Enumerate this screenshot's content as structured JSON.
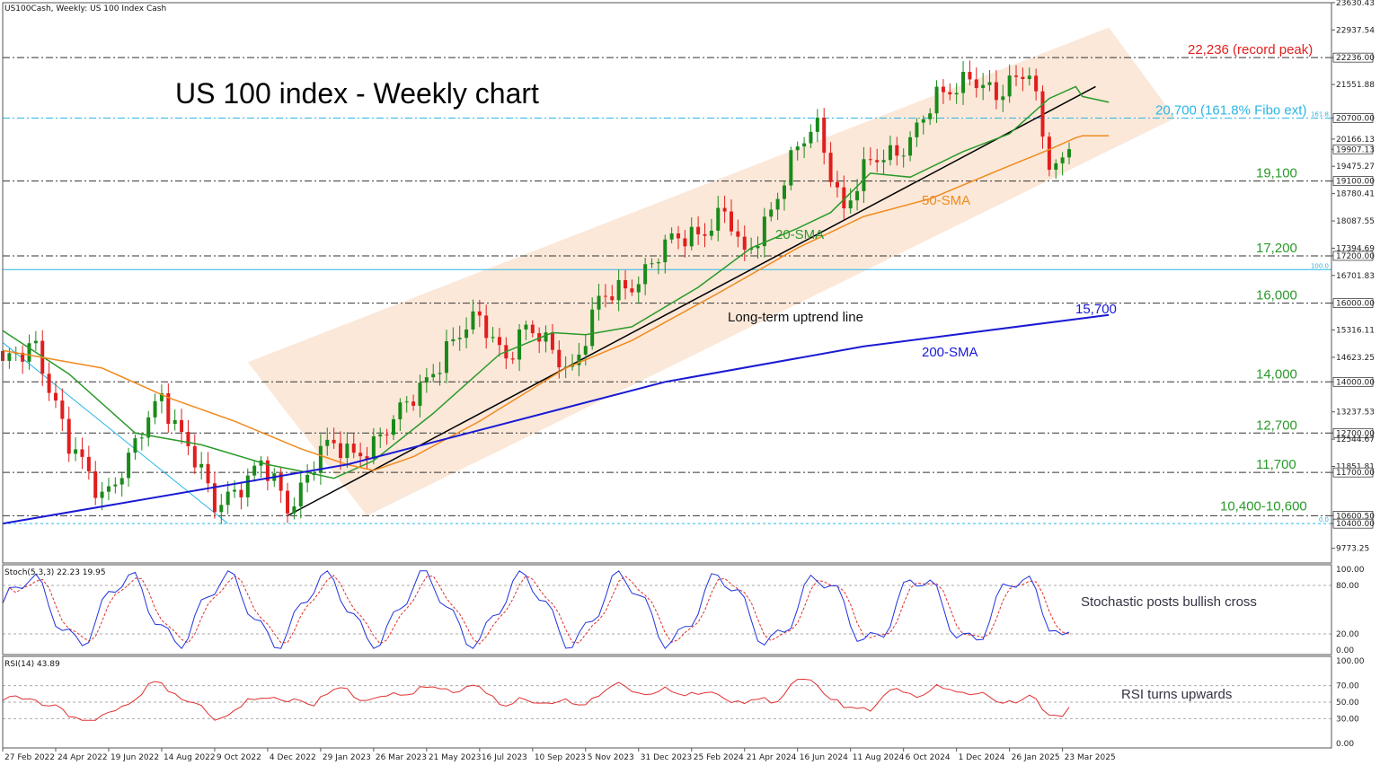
{
  "header": {
    "symbol_text": "US100Cash, Weekly:  US 100 Index Cash"
  },
  "title": "US 100 index - Weekly chart",
  "colors": {
    "candle_up": "#1a8a1a",
    "candle_down": "#e01e1e",
    "sma20": "#2a9a2a",
    "sma50": "#f08a1e",
    "sma200": "#1a1ad4",
    "channel": "#fae4d2",
    "level_line": "#333333",
    "fibo": "#29b6e6",
    "stoch_k": "#2233dd",
    "stoch_d": "#e03030",
    "rsi": "#e03030"
  },
  "price_axis_labels": [
    "23630.43",
    "22937.54",
    "22236.00",
    "21551.88",
    "20700.00",
    "20166.13",
    "19907.13",
    "19475.27",
    "19100.00",
    "18780.41",
    "18087.55",
    "17394.69",
    "17200.00",
    "16701.83",
    "16000.00",
    "15316.11",
    "14623.25",
    "14000.00",
    "13237.53",
    "12700.00",
    "12544.67",
    "11851.81",
    "11700.00",
    "10600.50",
    "10400.00",
    "9773.25"
  ],
  "time_axis_labels": [
    "27 Feb 2022",
    "24 Apr 2022",
    "19 Jun 2022",
    "14 Aug 2022",
    "9 Oct 2022",
    "4 Dec 2022",
    "29 Jan 2023",
    "26 Mar 2023",
    "21 May 2023",
    "16 Jul 2023",
    "10 Sep 2023",
    "5 Nov 2023",
    "31 Dec 2023",
    "25 Feb 2024",
    "21 Apr 2024",
    "16 Jun 2024",
    "11 Aug 2024",
    "6 Oct 2024",
    "1 Dec 2024",
    "26 Jan 2025",
    "23 Mar 2025"
  ],
  "levels": [
    {
      "value": 22236,
      "label": "22,236 (record peak)",
      "color": "#e01e1e"
    },
    {
      "value": 20700,
      "label": "20,700 (161.8% Fibo ext)",
      "color": "#29b6e6"
    },
    {
      "value": 19100,
      "label": "19,100",
      "color": "#2a9a2a"
    },
    {
      "value": 17200,
      "label": "17,200",
      "color": "#2a9a2a"
    },
    {
      "value": 16000,
      "label": "16,000",
      "color": "#2a9a2a"
    },
    {
      "value": 14000,
      "label": "14,000",
      "color": "#2a9a2a"
    },
    {
      "value": 12700,
      "label": "12,700",
      "color": "#2a9a2a"
    },
    {
      "value": 11700,
      "label": "11,700",
      "color": "#2a9a2a"
    },
    {
      "value": 10600,
      "label": "10,400-10,600",
      "color": "#2a9a2a"
    }
  ],
  "fibo_labels": {
    "f1618": "161.8",
    "f100": "100.0",
    "f0": "0.0"
  },
  "annotations": {
    "sma20": "20-SMA",
    "sma50": "50-SMA",
    "sma200": "200-SMA",
    "sma200_value": "15,700",
    "uptrend": "Long-term uptrend line",
    "stoch_note": "Stochastic posts bullish cross",
    "rsi_note": "RSI turns upwards"
  },
  "stoch_panel": {
    "header": "Stoch(5,3,3) 22.23 19.95",
    "axis_labels": [
      "100.00",
      "80.00",
      "20.00",
      "0.00"
    ]
  },
  "rsi_panel": {
    "header": "RSI(14) 43.89",
    "axis_labels": [
      "100.00",
      "70.00",
      "50.00",
      "30.00",
      "0.00"
    ]
  },
  "chart_data": {
    "type": "candlestick",
    "title": "US 100 index - Weekly chart",
    "ylim": [
      9400,
      23630
    ],
    "x_range": [
      "2022-02-27",
      "2025-03-30"
    ],
    "anchors": [
      [
        "2022-02-27",
        14300
      ],
      [
        "2022-04-03",
        15050
      ],
      [
        "2022-05-08",
        12300
      ],
      [
        "2022-06-12",
        11200
      ],
      [
        "2022-07-10",
        11950
      ],
      [
        "2022-08-14",
        13700
      ],
      [
        "2022-09-11",
        12400
      ],
      [
        "2022-10-09",
        10750
      ],
      [
        "2022-11-06",
        11500
      ],
      [
        "2022-11-27",
        11900
      ],
      [
        "2022-12-25",
        10750
      ],
      [
        "2023-01-29",
        12350
      ],
      [
        "2023-03-05",
        12100
      ],
      [
        "2023-04-30",
        13300
      ],
      [
        "2023-06-11",
        14900
      ],
      [
        "2023-07-16",
        15550
      ],
      [
        "2023-08-13",
        14750
      ],
      [
        "2023-09-03",
        15300
      ],
      [
        "2023-10-22",
        14400
      ],
      [
        "2023-11-19",
        15950
      ],
      [
        "2023-12-31",
        16700
      ],
      [
        "2024-02-04",
        17500
      ],
      [
        "2024-03-31",
        18250
      ],
      [
        "2024-04-21",
        17100
      ],
      [
        "2024-06-16",
        19850
      ],
      [
        "2024-07-07",
        20500
      ],
      [
        "2024-08-04",
        18400
      ],
      [
        "2024-09-01",
        19500
      ],
      [
        "2024-10-13",
        20200
      ],
      [
        "2024-11-10",
        21100
      ],
      [
        "2024-12-15",
        21900
      ],
      [
        "2025-01-12",
        21100
      ],
      [
        "2025-02-16",
        22100
      ],
      [
        "2025-03-09",
        19500
      ],
      [
        "2025-03-23",
        19900
      ]
    ],
    "series": [
      {
        "name": "20-SMA",
        "values": [
          [
            0,
            15300
          ],
          [
            10,
            14200
          ],
          [
            20,
            12700
          ],
          [
            30,
            12400
          ],
          [
            40,
            11900
          ],
          [
            46,
            11700
          ],
          [
            50,
            11550
          ],
          [
            56,
            12000
          ],
          [
            65,
            13200
          ],
          [
            75,
            14700
          ],
          [
            83,
            15250
          ],
          [
            88,
            15200
          ],
          [
            95,
            15400
          ],
          [
            105,
            16400
          ],
          [
            113,
            17400
          ],
          [
            120,
            17900
          ],
          [
            125,
            18300
          ],
          [
            131,
            19300
          ],
          [
            137,
            19200
          ],
          [
            145,
            19850
          ],
          [
            152,
            20300
          ],
          [
            158,
            21200
          ],
          [
            162,
            21500
          ],
          [
            163,
            21250
          ],
          [
            167,
            21100
          ]
        ]
      },
      {
        "name": "50-SMA",
        "values": [
          [
            0,
            14800
          ],
          [
            15,
            14350
          ],
          [
            25,
            13600
          ],
          [
            35,
            13000
          ],
          [
            45,
            12300
          ],
          [
            52,
            11900
          ],
          [
            56,
            11750
          ],
          [
            62,
            12100
          ],
          [
            72,
            13000
          ],
          [
            85,
            14350
          ],
          [
            95,
            15050
          ],
          [
            108,
            16250
          ],
          [
            120,
            17400
          ],
          [
            130,
            18200
          ],
          [
            140,
            18650
          ],
          [
            150,
            19350
          ],
          [
            158,
            19900
          ],
          [
            162,
            20200
          ],
          [
            163,
            20250
          ],
          [
            167,
            20250
          ]
        ]
      },
      {
        "name": "200-SMA",
        "values": [
          [
            0,
            10400
          ],
          [
            52,
            11900
          ],
          [
            100,
            14000
          ],
          [
            130,
            14900
          ],
          [
            167,
            15700
          ]
        ]
      }
    ],
    "uptrend_line": [
      [
        "2022-12-25",
        10600
      ],
      [
        "2025-04-27",
        21500
      ]
    ],
    "channel": [
      [
        37,
        14500
      ],
      [
        167,
        23000
      ],
      [
        177,
        20700
      ],
      [
        55,
        10600
      ]
    ],
    "stochastic": {
      "k_last": 22.23,
      "d_last": 19.95,
      "ylim": [
        0,
        100
      ],
      "levels": [
        80,
        20
      ]
    },
    "rsi": {
      "last": 43.89,
      "ylim": [
        0,
        100
      ],
      "levels": [
        70,
        50,
        30
      ]
    }
  }
}
